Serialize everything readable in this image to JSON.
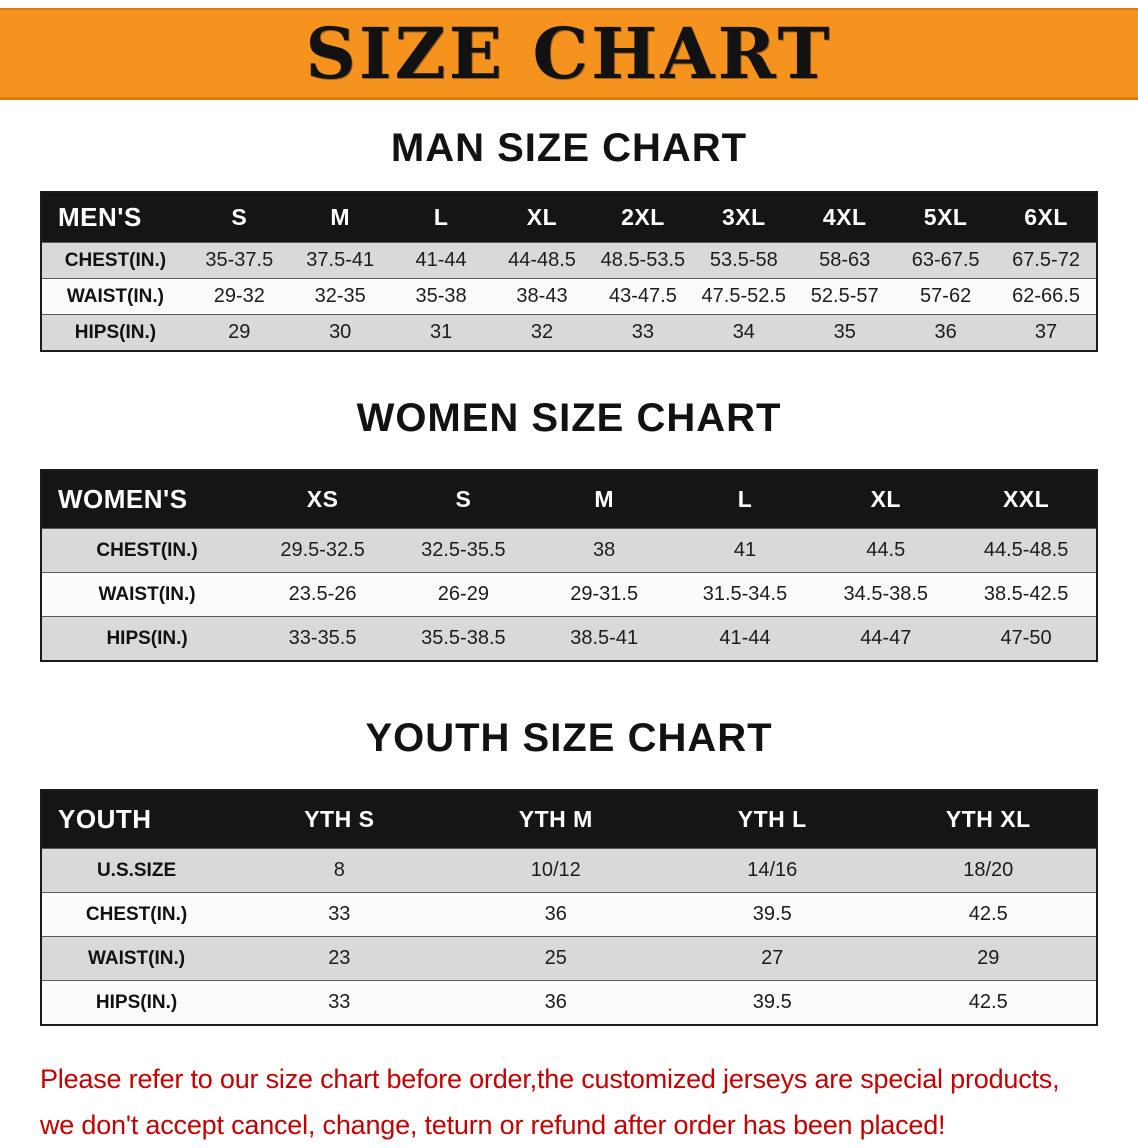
{
  "banner": {
    "title": "SIZE CHART"
  },
  "sections": [
    {
      "title": "MAN SIZE CHART",
      "header_label": "MEN'S",
      "columns": [
        "S",
        "M",
        "L",
        "XL",
        "2XL",
        "3XL",
        "4XL",
        "5XL",
        "6XL"
      ],
      "rows": [
        {
          "label": "CHEST(IN.)",
          "values": [
            "35-37.5",
            "37.5-41",
            "41-44",
            "44-48.5",
            "48.5-53.5",
            "53.5-58",
            "58-63",
            "63-67.5",
            "67.5-72"
          ]
        },
        {
          "label": "WAIST(IN.)",
          "values": [
            "29-32",
            "32-35",
            "35-38",
            "38-43",
            "43-47.5",
            "47.5-52.5",
            "52.5-57",
            "57-62",
            "62-66.5"
          ]
        },
        {
          "label": "HIPS(IN.)",
          "values": [
            "29",
            "30",
            "31",
            "32",
            "33",
            "34",
            "35",
            "36",
            "37"
          ]
        }
      ]
    },
    {
      "title": "WOMEN SIZE CHART",
      "header_label": "WOMEN'S",
      "columns": [
        "XS",
        "S",
        "M",
        "L",
        "XL",
        "XXL"
      ],
      "rows": [
        {
          "label": "CHEST(IN.)",
          "values": [
            "29.5-32.5",
            "32.5-35.5",
            "38",
            "41",
            "44.5",
            "44.5-48.5"
          ]
        },
        {
          "label": "WAIST(IN.)",
          "values": [
            "23.5-26",
            "26-29",
            "29-31.5",
            "31.5-34.5",
            "34.5-38.5",
            "38.5-42.5"
          ]
        },
        {
          "label": "HIPS(IN.)",
          "values": [
            "33-35.5",
            "35.5-38.5",
            "38.5-41",
            "41-44",
            "44-47",
            "47-50"
          ]
        }
      ]
    },
    {
      "title": "YOUTH SIZE CHART",
      "header_label": "YOUTH",
      "columns": [
        "YTH S",
        "YTH M",
        "YTH L",
        "YTH XL"
      ],
      "rows": [
        {
          "label": "U.S.SIZE",
          "values": [
            "8",
            "10/12",
            "14/16",
            "18/20"
          ]
        },
        {
          "label": "CHEST(IN.)",
          "values": [
            "33",
            "36",
            "39.5",
            "42.5"
          ]
        },
        {
          "label": "WAIST(IN.)",
          "values": [
            "23",
            "25",
            "27",
            "29"
          ]
        },
        {
          "label": "HIPS(IN.)",
          "values": [
            "33",
            "36",
            "39.5",
            "42.5"
          ]
        }
      ]
    }
  ],
  "footer": {
    "lines": [
      "Please refer to our size chart before order,the customized jerseys are special products,",
      "we don't accept cancel, change, teturn or refund after order has been placed!"
    ]
  },
  "colors": {
    "banner_bg": "#F6921E",
    "header_row_bg": "#151515",
    "header_row_text": "#FFFFFF",
    "row_alt_bg": "#D9D9D9",
    "footer_text": "#C40000"
  }
}
